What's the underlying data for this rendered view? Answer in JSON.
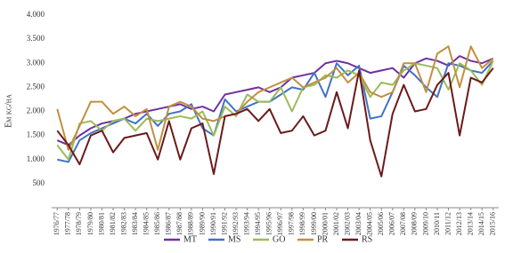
{
  "chart_data": {
    "type": "line",
    "y_label": "Em kg/ha",
    "categories": [
      "1976/77",
      "1977/78",
      "1978/79",
      "1979/80",
      "1980/81",
      "1981/82",
      "1982/83",
      "1983/84",
      "1984/85",
      "1985/86",
      "1986/87",
      "1987/88",
      "1988/89",
      "1989/90",
      "1990/91",
      "1991/92",
      "1992/93",
      "1993/94",
      "1994/95",
      "1995/96",
      "1996/97",
      "1997/98",
      "1998/99",
      "1999/00",
      "2000/01",
      "2001/02",
      "2002/03",
      "2003/04",
      "2004/05",
      "2005/06",
      "2006/07",
      "2007/08",
      "2008/09",
      "2009/10",
      "2010/11",
      "2011/12",
      "2012/13",
      "2013/14",
      "2014/15",
      "2015/16"
    ],
    "series": [
      {
        "name": "MT",
        "color": "#7030a0",
        "values": [
          1400,
          1300,
          1500,
          1650,
          1750,
          1800,
          1850,
          1950,
          2000,
          2050,
          2100,
          2150,
          2050,
          2100,
          2000,
          2350,
          2400,
          2450,
          2500,
          2400,
          2500,
          2700,
          2750,
          2800,
          3000,
          3050,
          3000,
          2900,
          2800,
          2850,
          2900,
          2700,
          3000,
          3100,
          3050,
          2950,
          3150,
          3050,
          3000,
          3100
        ]
      },
      {
        "name": "MS",
        "color": "#4472c4",
        "values": [
          1000,
          950,
          1400,
          1550,
          1650,
          1750,
          1850,
          1750,
          1950,
          1700,
          1950,
          2000,
          2150,
          1650,
          1500,
          2250,
          2000,
          2100,
          2200,
          2200,
          2350,
          2500,
          2450,
          2800,
          2300,
          3000,
          2750,
          2950,
          1850,
          1900,
          2400,
          2950,
          2750,
          2500,
          2300,
          3000,
          2950,
          2850,
          2800,
          3050
        ]
      },
      {
        "name": "GO",
        "color": "#9bbb59",
        "values": [
          1300,
          1000,
          1750,
          1800,
          1600,
          1800,
          1850,
          1600,
          1850,
          1800,
          1850,
          1900,
          1850,
          2000,
          1500,
          2100,
          1900,
          2350,
          2200,
          2200,
          2500,
          2000,
          2500,
          2550,
          2750,
          2700,
          2850,
          2750,
          2300,
          2600,
          2550,
          2850,
          3000,
          2950,
          2900,
          2450,
          3000,
          2850,
          2550,
          3050
        ]
      },
      {
        "name": "PR",
        "color": "#c09040",
        "values": [
          2050,
          1200,
          1700,
          2200,
          2200,
          1950,
          2100,
          1900,
          2050,
          1200,
          2100,
          2200,
          2100,
          1850,
          1800,
          1900,
          1950,
          2200,
          2400,
          2500,
          2600,
          2700,
          2500,
          2600,
          2700,
          2900,
          2600,
          2800,
          2400,
          2300,
          2400,
          3000,
          3000,
          2400,
          3200,
          3350,
          2500,
          3350,
          2900,
          3100
        ]
      },
      {
        "name": "RS",
        "color": "#6b1a1a",
        "values": [
          1600,
          1300,
          900,
          1500,
          1600,
          1150,
          1450,
          1500,
          1550,
          1000,
          1800,
          1000,
          1650,
          1750,
          700,
          1900,
          1950,
          2050,
          1800,
          2050,
          1550,
          1600,
          1900,
          1500,
          1600,
          2400,
          1650,
          2850,
          1400,
          650,
          1950,
          2550,
          2000,
          2050,
          2550,
          2800,
          1500,
          2700,
          2600,
          2900
        ]
      }
    ],
    "ylim": [
      0,
      4000
    ],
    "yticks": [
      {
        "value": 500,
        "label": "500"
      },
      {
        "value": 1000,
        "label": "1.000"
      },
      {
        "value": 1500,
        "label": "1.500"
      },
      {
        "value": 2000,
        "label": "2.000"
      },
      {
        "value": 2500,
        "label": "2.500"
      },
      {
        "value": 3000,
        "label": "3.000"
      },
      {
        "value": 3500,
        "label": "3.500"
      },
      {
        "value": 4000,
        "label": "4.000"
      }
    ],
    "legend": "bottom"
  }
}
